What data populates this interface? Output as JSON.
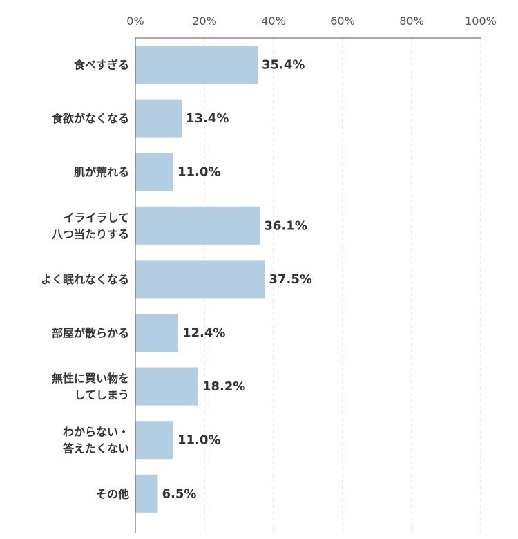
{
  "chart_data": {
    "type": "bar",
    "orientation": "horizontal",
    "categories": [
      "食べすぎる",
      "食欲がなくなる",
      "肌が荒れる",
      "イライラして\n八つ当たりする",
      "よく眠れなくなる",
      "部屋が散らかる",
      "無性に買い物を\nしてしまう",
      "わからない・\n答えたくない",
      "その他"
    ],
    "values": [
      35.4,
      13.4,
      11.0,
      36.1,
      37.5,
      12.4,
      18.2,
      11.0,
      6.5
    ],
    "value_labels": [
      "35.4%",
      "13.4%",
      "11.0%",
      "36.1%",
      "37.5%",
      "12.4%",
      "18.2%",
      "11.0%",
      "6.5%"
    ],
    "xlim": [
      0,
      100
    ],
    "xticks": [
      0,
      20,
      40,
      60,
      80,
      100
    ],
    "xtick_labels": [
      "0%",
      "20%",
      "40%",
      "60%",
      "80%",
      "100%"
    ],
    "xaxis_position": "top",
    "grid": true,
    "bar_color": "#b3cde2"
  }
}
